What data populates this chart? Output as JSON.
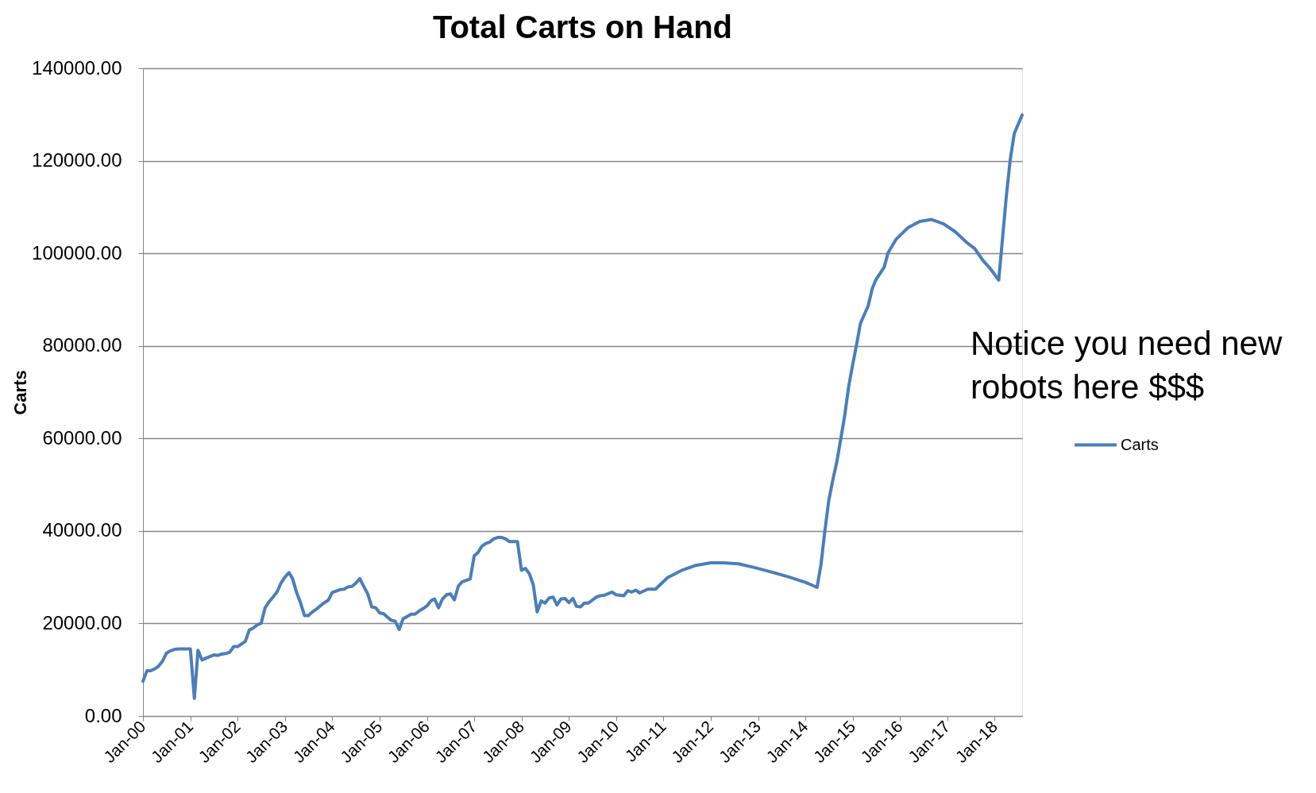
{
  "chart_data": {
    "type": "line",
    "title": "Total Carts on Hand",
    "ylabel": "Carts",
    "annotations": [
      "Notice you need new robots here  $$$"
    ],
    "xlim": [
      "2000-01",
      "2018-08"
    ],
    "xticks": [
      {
        "value": "2000-01",
        "label": "Jan-00"
      },
      {
        "value": "2001-01",
        "label": "Jan-01"
      },
      {
        "value": "2002-01",
        "label": "Jan-02"
      },
      {
        "value": "2003-01",
        "label": "Jan-03"
      },
      {
        "value": "2004-01",
        "label": "Jan-04"
      },
      {
        "value": "2005-01",
        "label": "Jan-05"
      },
      {
        "value": "2006-01",
        "label": "Jan-06"
      },
      {
        "value": "2007-01",
        "label": "Jan-07"
      },
      {
        "value": "2008-01",
        "label": "Jan-08"
      },
      {
        "value": "2009-01",
        "label": "Jan-09"
      },
      {
        "value": "2010-01",
        "label": "Jan-10"
      },
      {
        "value": "2011-01",
        "label": "Jan-11"
      },
      {
        "value": "2012-01",
        "label": "Jan-12"
      },
      {
        "value": "2013-01",
        "label": "Jan-13"
      },
      {
        "value": "2014-01",
        "label": "Jan-14"
      },
      {
        "value": "2015-01",
        "label": "Jan-15"
      },
      {
        "value": "2016-01",
        "label": "Jan-16"
      },
      {
        "value": "2017-01",
        "label": "Jan-17"
      },
      {
        "value": "2018-01",
        "label": "Jan-18"
      }
    ],
    "ylim": [
      0,
      140000
    ],
    "yticks": [
      {
        "value": 0,
        "label": "0.00"
      },
      {
        "value": 20000,
        "label": "20000.00"
      },
      {
        "value": 40000,
        "label": "40000.00"
      },
      {
        "value": 60000,
        "label": "60000.00"
      },
      {
        "value": 80000,
        "label": "80000.00"
      },
      {
        "value": 100000,
        "label": "100000.00"
      },
      {
        "value": 120000,
        "label": "120000.00"
      },
      {
        "value": 140000,
        "label": "140000.00"
      }
    ],
    "grid": "y",
    "legend": "right",
    "series": [
      {
        "name": "Carts",
        "color": "#4a7ebb",
        "x": [
          "2000-01",
          "2000-02",
          "2000-03",
          "2000-04",
          "2000-05",
          "2000-06",
          "2000-07",
          "2000-08",
          "2000-09",
          "2000-10",
          "2000-11",
          "2001-01",
          "2001-02",
          "2001-03",
          "2001-04",
          "2001-05",
          "2001-07",
          "2001-08",
          "2001-09",
          "2001-10",
          "2001-11",
          "2001-12",
          "2002-01",
          "2002-02",
          "2002-03",
          "2002-04",
          "2002-05",
          "2002-06",
          "2002-07",
          "2002-08",
          "2002-09",
          "2002-10",
          "2002-11",
          "2002-12",
          "2003-01",
          "2003-02",
          "2003-03",
          "2003-04",
          "2003-05",
          "2003-06",
          "2003-07",
          "2003-08",
          "2003-09",
          "2003-10",
          "2003-11",
          "2003-12",
          "2004-01",
          "2004-02",
          "2004-03",
          "2004-04",
          "2004-05",
          "2004-06",
          "2004-07",
          "2004-08",
          "2004-09",
          "2004-10",
          "2004-11",
          "2004-12",
          "2005-01",
          "2005-02",
          "2005-03",
          "2005-04",
          "2005-05",
          "2005-06",
          "2005-07",
          "2005-08",
          "2005-09",
          "2005-10",
          "2005-11",
          "2005-12",
          "2006-01",
          "2006-02",
          "2006-03",
          "2006-04",
          "2006-05",
          "2006-06",
          "2006-07",
          "2006-08",
          "2006-09",
          "2006-10",
          "2006-11",
          "2006-12",
          "2007-01",
          "2007-02",
          "2007-03",
          "2007-04",
          "2007-05",
          "2007-06",
          "2007-07",
          "2007-08",
          "2007-09",
          "2007-10",
          "2007-11",
          "2007-12",
          "2008-01",
          "2008-02",
          "2008-03",
          "2008-04",
          "2008-05",
          "2008-06",
          "2008-07",
          "2008-08",
          "2008-09",
          "2008-10",
          "2008-11",
          "2008-12",
          "2009-01",
          "2009-02",
          "2009-03",
          "2009-04",
          "2009-05",
          "2009-06",
          "2009-08",
          "2009-09",
          "2009-10",
          "2009-12",
          "2010-01",
          "2010-03",
          "2010-04",
          "2010-05",
          "2010-06",
          "2010-07",
          "2010-09",
          "2010-11",
          "2011-02",
          "2011-06",
          "2011-09",
          "2012-01",
          "2012-04",
          "2012-08",
          "2012-12",
          "2013-05",
          "2013-09",
          "2014-01",
          "2014-04",
          "2014-05",
          "2014-06",
          "2014-07",
          "2014-08",
          "2014-09",
          "2014-10",
          "2014-11",
          "2014-12",
          "2015-01",
          "2015-02",
          "2015-03",
          "2015-05",
          "2015-06",
          "2015-07",
          "2015-09",
          "2015-10",
          "2015-12",
          "2016-03",
          "2016-06",
          "2016-09",
          "2016-12",
          "2017-03",
          "2017-06",
          "2017-08",
          "2017-10",
          "2017-12",
          "2018-02",
          "2018-03",
          "2018-04",
          "2018-05",
          "2018-06",
          "2018-08"
        ],
        "values": [
          7500,
          9800,
          9800,
          10200,
          10800,
          11900,
          13600,
          14100,
          14400,
          14500,
          14500,
          14500,
          3800,
          14200,
          12100,
          12500,
          13200,
          13100,
          13400,
          13500,
          13800,
          15000,
          15000,
          15600,
          16100,
          18600,
          19000,
          19700,
          20000,
          23400,
          24700,
          25700,
          26800,
          28700,
          30000,
          31000,
          29700,
          26700,
          24500,
          21700,
          21700,
          22500,
          23100,
          23800,
          24500,
          25000,
          26700,
          27000,
          27300,
          27400,
          27900,
          28000,
          28700,
          29700,
          28000,
          26400,
          23600,
          23400,
          22300,
          22100,
          21400,
          20700,
          20500,
          18700,
          21000,
          21500,
          22000,
          22000,
          22700,
          23200,
          23800,
          24900,
          25300,
          23400,
          25300,
          26200,
          26400,
          25100,
          28100,
          29000,
          29300,
          29600,
          34600,
          35400,
          36700,
          37300,
          37600,
          38300,
          38600,
          38600,
          38300,
          37700,
          37700,
          37700,
          31500,
          31900,
          30800,
          28400,
          22500,
          24900,
          24400,
          25500,
          25700,
          24000,
          25300,
          25400,
          24500,
          25400,
          23700,
          23600,
          24400,
          24400,
          25700,
          26000,
          26100,
          26800,
          26200,
          26000,
          27100,
          26800,
          27200,
          26600,
          27400,
          27400,
          29900,
          31600,
          32500,
          33100,
          33100,
          32900,
          32100,
          31000,
          30000,
          28900,
          27800,
          32700,
          40200,
          46700,
          51100,
          55000,
          59900,
          65100,
          71200,
          76000,
          80400,
          84800,
          88700,
          92400,
          94400,
          97000,
          100100,
          103000,
          105500,
          106900,
          107300,
          106400,
          104700,
          102300,
          101000,
          98500,
          96600,
          94200,
          102700,
          112400,
          120200,
          125900,
          129900
        ]
      }
    ]
  }
}
